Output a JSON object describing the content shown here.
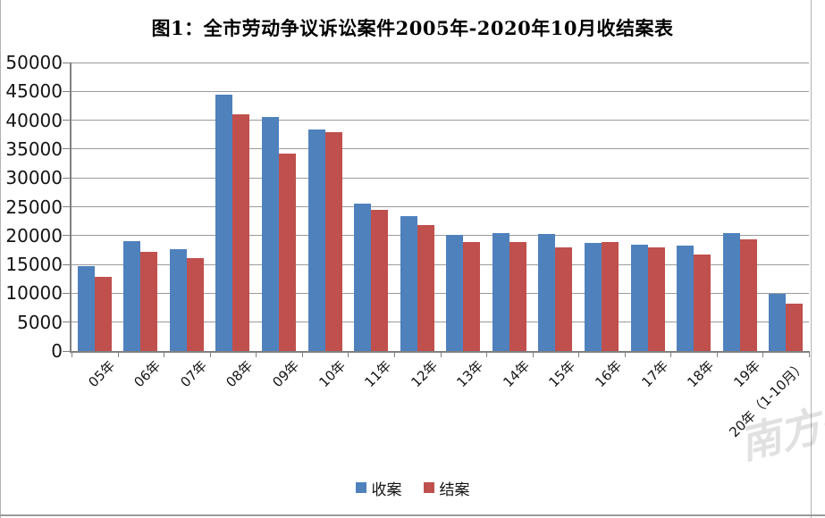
{
  "page": {
    "watermark": "南方+"
  },
  "chart_data": {
    "type": "bar",
    "title": "图1：全市劳动争议诉讼案件2005年-2020年10月收结案表",
    "categories": [
      "05年",
      "06年",
      "07年",
      "08年",
      "09年",
      "10年",
      "11年",
      "12年",
      "13年",
      "14年",
      "15年",
      "16年",
      "17年",
      "18年",
      "19年",
      "20年（1-10月）"
    ],
    "series": [
      {
        "name": "收案",
        "color": "#4F81BD",
        "values": [
          14700,
          19000,
          17700,
          44400,
          40500,
          38400,
          25600,
          23400,
          20200,
          20400,
          20300,
          18700,
          18400,
          18200,
          20400,
          9900
        ]
      },
      {
        "name": "结案",
        "color": "#C0504D",
        "values": [
          12900,
          17200,
          16100,
          41000,
          34200,
          37900,
          24400,
          21900,
          18900,
          18900,
          17900,
          18900,
          18000,
          16700,
          19300,
          8200
        ]
      }
    ],
    "xlabel": "",
    "ylabel": "",
    "ylim": [
      0,
      50000
    ],
    "ytick_step": 5000,
    "yticks": [
      0,
      5000,
      10000,
      15000,
      20000,
      25000,
      30000,
      35000,
      40000,
      45000,
      50000
    ],
    "grid": true,
    "gridline_color": "#9b9b9b",
    "axis_color": "#808080",
    "legend_position": "bottom"
  }
}
